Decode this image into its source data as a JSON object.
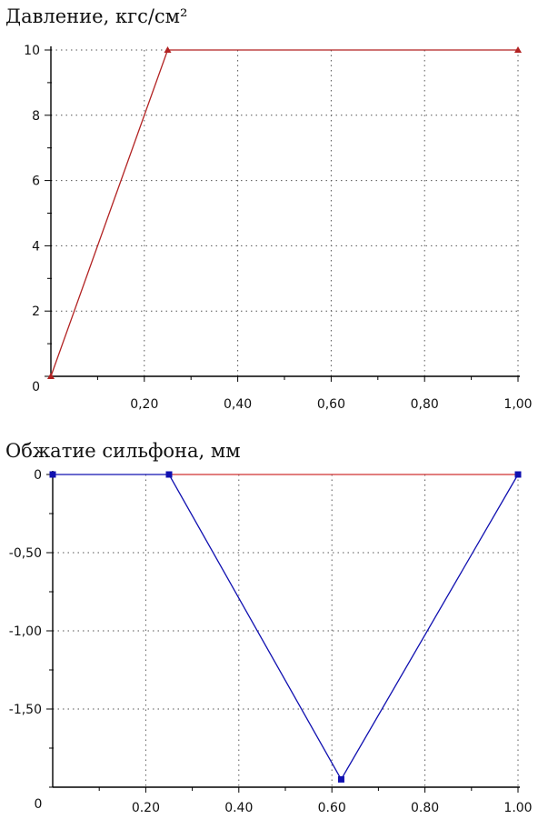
{
  "chart_data": [
    {
      "type": "line",
      "title": "Давление, кгс/см²",
      "xlabel": "",
      "ylabel": "",
      "xlim": [
        0,
        1.0
      ],
      "ylim": [
        0,
        10
      ],
      "grid": true,
      "x_ticks": [
        0.2,
        0.4,
        0.6,
        0.8,
        1.0
      ],
      "x_tick_labels": [
        "0,20",
        "0,40",
        "0,60",
        "0,80",
        "1,00"
      ],
      "y_ticks": [
        0,
        2,
        4,
        6,
        8,
        10
      ],
      "y_tick_labels": [
        "0",
        "2",
        "4",
        "6",
        "8",
        "10"
      ],
      "series": [
        {
          "color": "#b22222",
          "marker": "triangle",
          "x": [
            0,
            0.25,
            1.0
          ],
          "y": [
            0,
            10,
            10
          ]
        }
      ]
    },
    {
      "type": "line",
      "title": "Обжатие сильфона, мм",
      "xlabel": "",
      "ylabel": "",
      "xlim": [
        0,
        1.0
      ],
      "ylim": [
        -2.0,
        0
      ],
      "grid": true,
      "x_ticks": [
        0.2,
        0.4,
        0.6,
        0.8,
        1.0
      ],
      "x_tick_labels": [
        "0.20",
        "0.40",
        "0.60",
        "0.80",
        "1.00"
      ],
      "x_origin_label": "0",
      "y_ticks": [
        0,
        -0.5,
        -1.0,
        -1.5
      ],
      "y_tick_labels": [
        "0",
        "-0,50",
        "-1,00",
        "-1,50"
      ],
      "series": [
        {
          "color": "#1010b0",
          "marker": "square",
          "x": [
            0,
            0.25,
            0.62,
            1.0
          ],
          "y": [
            0,
            0,
            -1.95,
            0
          ]
        },
        {
          "color": "#d03030",
          "marker": "none",
          "x": [
            0.25,
            1.0
          ],
          "y": [
            0,
            0
          ]
        }
      ]
    }
  ]
}
